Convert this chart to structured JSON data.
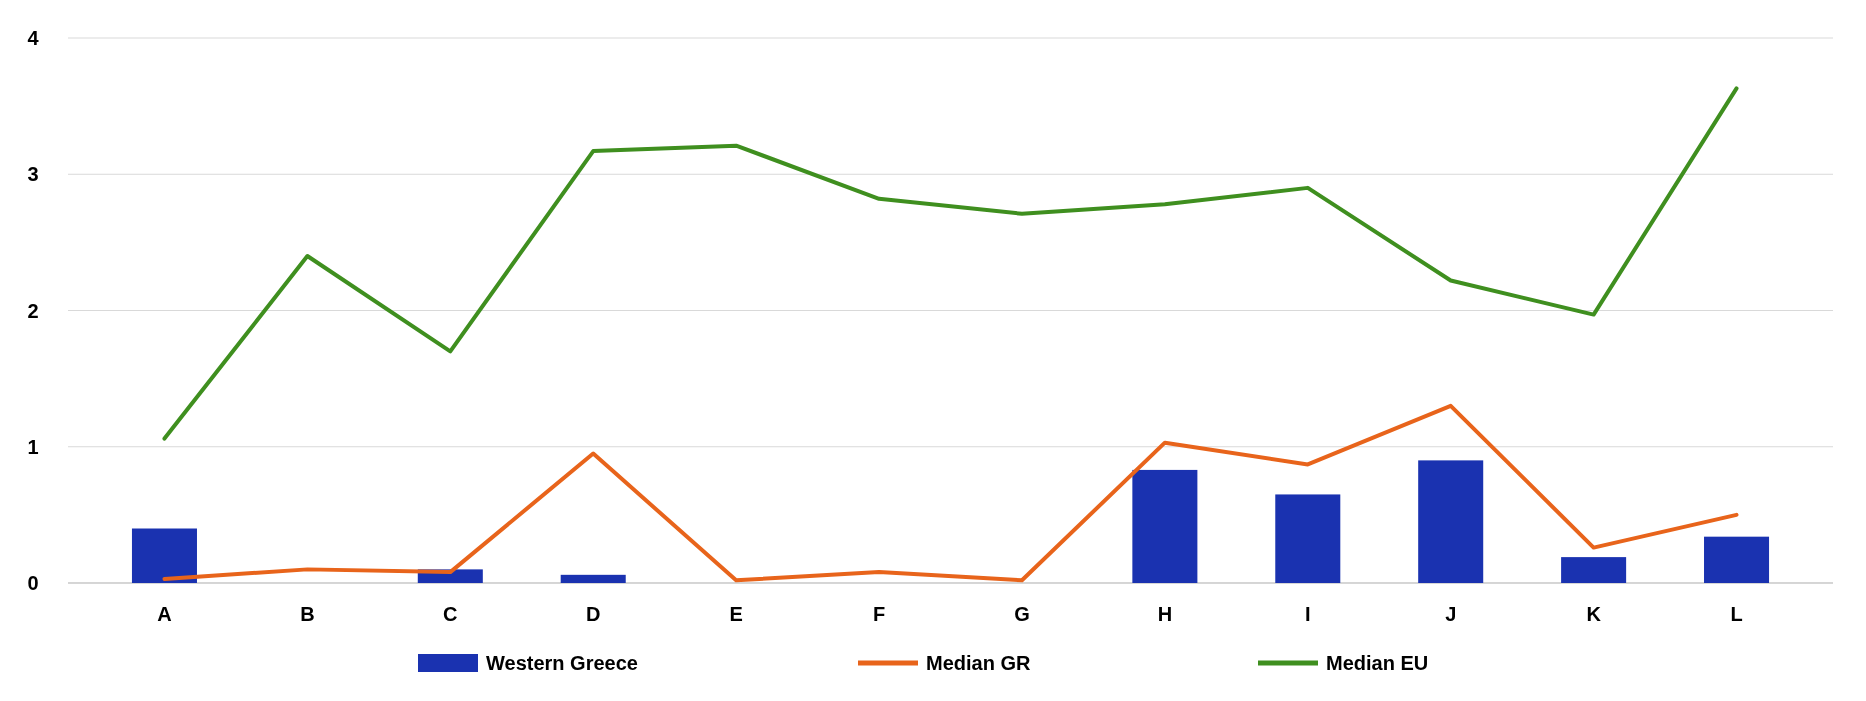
{
  "chart_data": {
    "type": "bar",
    "categories": [
      "A",
      "B",
      "C",
      "D",
      "E",
      "F",
      "G",
      "H",
      "I",
      "J",
      "K",
      "L"
    ],
    "series": [
      {
        "name": "Western Greece",
        "color": "#1a32b0",
        "values": [
          0.4,
          0,
          0.1,
          0.06,
          0,
          0,
          0,
          0.83,
          0.65,
          0.9,
          0.19,
          0.34
        ]
      },
      {
        "name": "Median GR",
        "type": "line",
        "color": "#e8641b",
        "values": [
          0.03,
          0.1,
          0.08,
          0.95,
          0.02,
          0.08,
          0.02,
          1.03,
          0.87,
          1.3,
          0.26,
          0.5
        ]
      },
      {
        "name": "Median EU",
        "type": "line",
        "color": "#3f8f1f",
        "values": [
          1.06,
          2.4,
          1.7,
          3.17,
          3.21,
          2.82,
          2.71,
          2.78,
          2.9,
          2.22,
          1.97,
          3.63
        ]
      }
    ],
    "ylim": [
      0,
      4
    ],
    "yticks": [
      0,
      1,
      2,
      3,
      4
    ],
    "grid": "y",
    "legend": "bottom"
  }
}
